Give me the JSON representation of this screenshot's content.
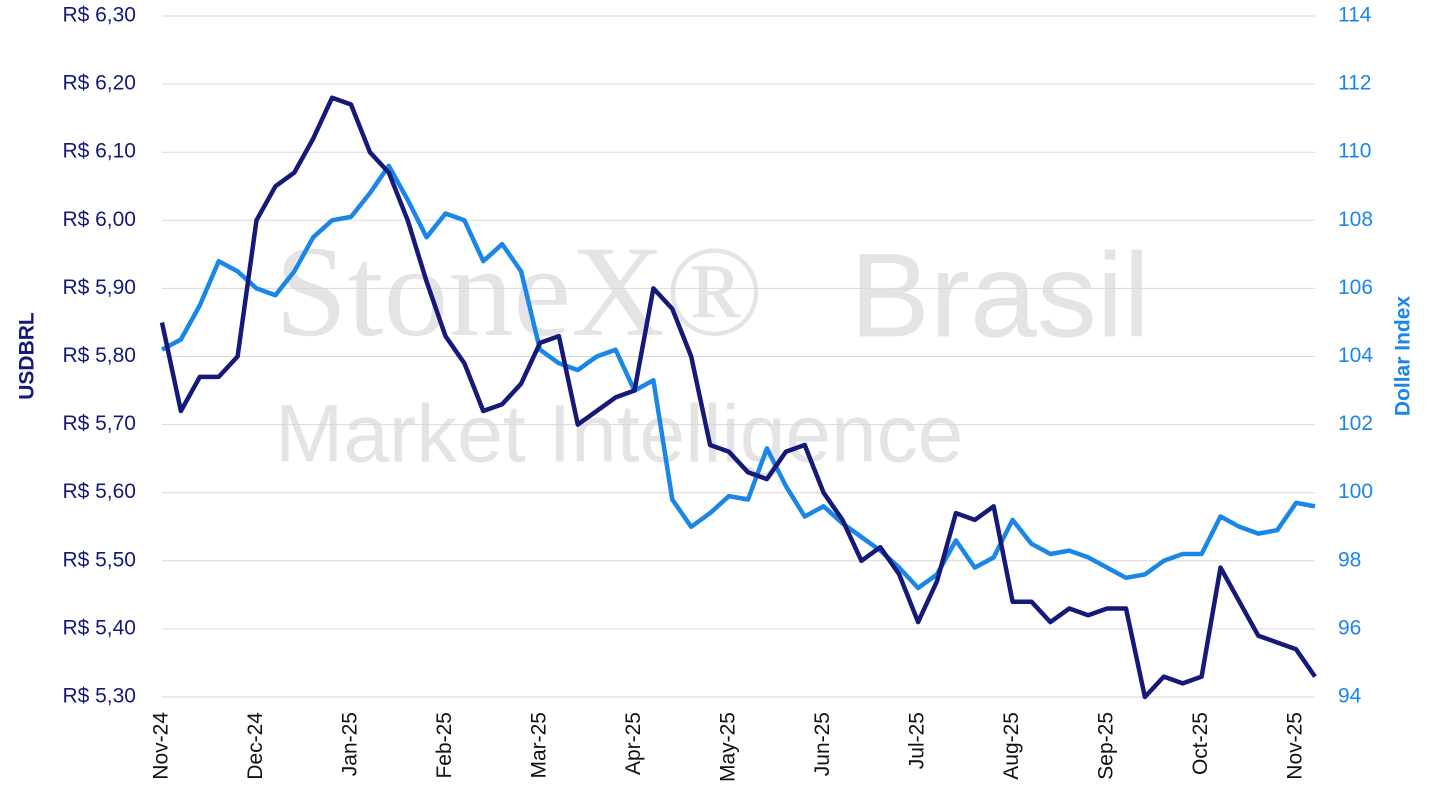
{
  "chart_data": {
    "type": "line",
    "watermark": {
      "brand": "StoneX®",
      "region": "Brasil",
      "tagline": "Market Intelligence"
    },
    "y_label": "USDBRL",
    "y2_label": "Dollar Index",
    "categories": [
      "Nov-24",
      null,
      null,
      null,
      null,
      "Dec-24",
      null,
      null,
      null,
      null,
      "Jan-25",
      null,
      null,
      null,
      null,
      "Feb-25",
      null,
      null,
      null,
      null,
      "Mar-25",
      null,
      null,
      null,
      null,
      "Apr-25",
      null,
      null,
      null,
      null,
      "May-25",
      null,
      null,
      null,
      null,
      "Jun-25",
      null,
      null,
      null,
      null,
      "Jul-25",
      null,
      null,
      null,
      null,
      "Aug-25",
      null,
      null,
      null,
      null,
      "Sep-25",
      null,
      null,
      null,
      null,
      "Oct-25",
      null,
      null,
      null,
      null,
      "Nov-25",
      null
    ],
    "series": [
      {
        "name": "USDBRL",
        "color": "#151a78",
        "axis": "y",
        "values": [
          5.85,
          5.72,
          5.77,
          5.77,
          5.8,
          6.0,
          6.05,
          6.07,
          6.12,
          6.18,
          6.17,
          6.1,
          6.07,
          6.0,
          5.91,
          5.83,
          5.79,
          5.72,
          5.73,
          5.76,
          5.82,
          5.83,
          5.7,
          5.72,
          5.74,
          5.75,
          5.9,
          5.87,
          5.8,
          5.67,
          5.66,
          5.63,
          5.62,
          5.66,
          5.67,
          5.6,
          5.56,
          5.5,
          5.52,
          5.48,
          5.41,
          5.47,
          5.57,
          5.56,
          5.58,
          5.44,
          5.44,
          5.41,
          5.43,
          5.42,
          5.43,
          5.43,
          5.3,
          5.33,
          5.32,
          5.33,
          5.49,
          5.44,
          5.39,
          5.38,
          5.37,
          5.33
        ]
      },
      {
        "name": "Dollar Index",
        "color": "#1a86e8",
        "axis": "y2",
        "values": [
          104.2,
          104.5,
          105.5,
          106.8,
          106.5,
          106.0,
          105.8,
          106.5,
          107.5,
          108.0,
          108.1,
          108.8,
          109.6,
          108.6,
          107.5,
          108.2,
          108.0,
          106.8,
          107.3,
          106.5,
          104.2,
          103.8,
          103.6,
          104.0,
          104.2,
          103.0,
          103.3,
          99.8,
          99.0,
          99.4,
          99.9,
          99.8,
          101.3,
          100.2,
          99.3,
          99.6,
          99.1,
          98.7,
          98.3,
          97.8,
          97.2,
          97.6,
          98.6,
          97.8,
          98.1,
          99.2,
          98.5,
          98.2,
          98.3,
          98.1,
          97.8,
          97.5,
          97.6,
          98.0,
          98.2,
          98.2,
          99.3,
          99.0,
          98.8,
          98.9,
          99.7,
          99.6
        ]
      }
    ],
    "ylim": [
      5.3,
      6.3
    ],
    "yticks": [
      {
        "value": 5.3,
        "label": "R$ 5,30"
      },
      {
        "value": 5.4,
        "label": "R$ 5,40"
      },
      {
        "value": 5.5,
        "label": "R$ 5,50"
      },
      {
        "value": 5.6,
        "label": "R$ 5,60"
      },
      {
        "value": 5.7,
        "label": "R$ 5,70"
      },
      {
        "value": 5.8,
        "label": "R$ 5,80"
      },
      {
        "value": 5.9,
        "label": "R$ 5,90"
      },
      {
        "value": 6.0,
        "label": "R$ 6,00"
      },
      {
        "value": 6.1,
        "label": "R$ 6,10"
      },
      {
        "value": 6.2,
        "label": "R$ 6,20"
      },
      {
        "value": 6.3,
        "label": "R$ 6,30"
      }
    ],
    "y2lim": [
      94,
      114
    ],
    "y2ticks": [
      94,
      96,
      98,
      100,
      102,
      104,
      106,
      108,
      110,
      112,
      114
    ],
    "grid": true
  }
}
